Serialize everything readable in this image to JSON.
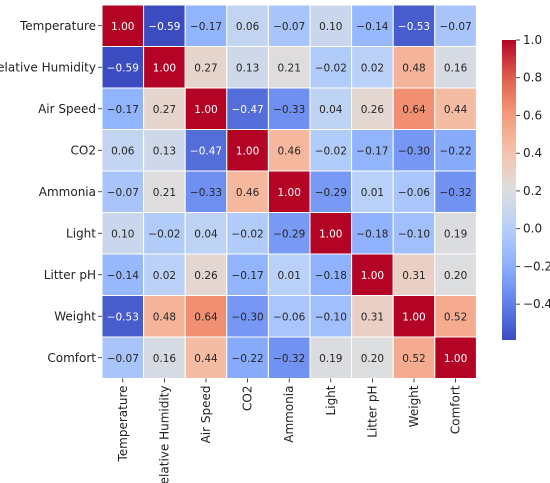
{
  "chart_data": {
    "type": "heatmap",
    "row_labels": [
      "Temperature",
      "Relative Humidity",
      "Air Speed",
      "CO2",
      "Ammonia",
      "Light",
      "Litter pH",
      "Weight",
      "Comfort"
    ],
    "col_labels": [
      "Temperature",
      "Relative Humidity",
      "Air Speed",
      "CO2",
      "Ammonia",
      "Light",
      "Litter pH",
      "Weight",
      "Comfort"
    ],
    "values": [
      [
        1.0,
        -0.59,
        -0.17,
        0.06,
        -0.07,
        0.1,
        -0.14,
        -0.53,
        -0.07
      ],
      [
        -0.59,
        1.0,
        0.27,
        0.13,
        0.21,
        -0.02,
        0.02,
        0.48,
        0.16
      ],
      [
        -0.17,
        0.27,
        1.0,
        -0.47,
        -0.33,
        0.04,
        0.26,
        0.64,
        0.44
      ],
      [
        0.06,
        0.13,
        -0.47,
        1.0,
        0.46,
        -0.02,
        -0.17,
        -0.3,
        -0.22
      ],
      [
        -0.07,
        0.21,
        -0.33,
        0.46,
        1.0,
        -0.29,
        0.01,
        -0.06,
        -0.32
      ],
      [
        0.1,
        -0.02,
        0.04,
        -0.02,
        -0.29,
        1.0,
        -0.18,
        -0.1,
        0.19
      ],
      [
        -0.14,
        0.02,
        0.26,
        -0.17,
        0.01,
        -0.18,
        1.0,
        0.31,
        0.2
      ],
      [
        -0.53,
        0.48,
        0.64,
        -0.3,
        -0.06,
        -0.1,
        0.31,
        1.0,
        0.52
      ],
      [
        -0.07,
        0.16,
        0.44,
        -0.22,
        -0.32,
        0.19,
        0.2,
        0.52,
        1.0
      ]
    ],
    "value_format": "0.00",
    "colormap": "coolwarm",
    "color_range": [
      -0.59,
      1.0
    ],
    "colorbar_ticks": [
      1.0,
      0.8,
      0.6,
      0.4,
      0.2,
      0.0,
      -0.2,
      -0.4
    ],
    "colorbar_tick_labels": [
      "1.0",
      "0.8",
      "0.6",
      "0.4",
      "0.2",
      "0.0",
      "−0.2",
      "−0.4"
    ],
    "cell_border_color": "#ffffff",
    "title": "",
    "xlabel": "",
    "ylabel": ""
  }
}
